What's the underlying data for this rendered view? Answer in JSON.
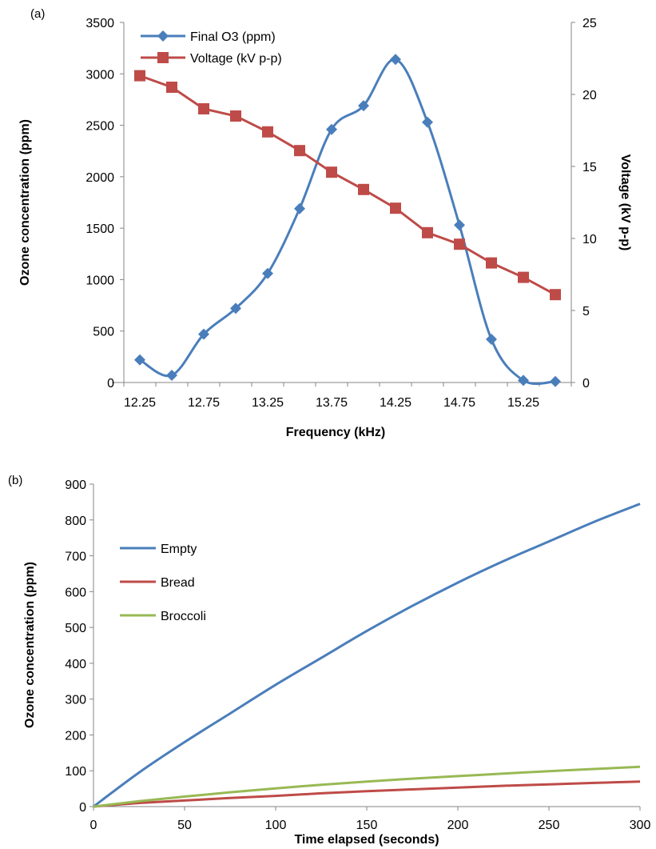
{
  "chart_data": [
    {
      "type": "line",
      "panel_label": "(a)",
      "xlabel": "Frequency (kHz)",
      "ylabel": "Ozone concentration (ppm)",
      "y2label": "Voltage (kV p-p)",
      "x_tick_labels": [
        "12.25",
        "12.75",
        "13.25",
        "13.75",
        "14.25",
        "14.75",
        "15.25"
      ],
      "x_categories": [
        12.25,
        12.5,
        12.75,
        13.0,
        13.25,
        13.5,
        13.75,
        14.0,
        14.25,
        14.5,
        14.75,
        15.0,
        15.25,
        15.5
      ],
      "ylim": [
        0,
        3500
      ],
      "y_ticks": [
        0,
        500,
        1000,
        1500,
        2000,
        2500,
        3000,
        3500
      ],
      "y2lim": [
        0,
        25
      ],
      "y2_ticks": [
        0,
        5,
        10,
        15,
        20,
        25
      ],
      "legend_position": "top-left",
      "series": [
        {
          "name": "Final O3 (ppm)",
          "axis": "left",
          "marker": "diamond",
          "smooth": true,
          "color": "#4a7ebb",
          "values": [
            220,
            70,
            470,
            720,
            1060,
            1690,
            2460,
            2690,
            3140,
            2530,
            1530,
            420,
            20,
            10
          ]
        },
        {
          "name": "Voltage (kV p-p)",
          "axis": "right",
          "marker": "square",
          "smooth": false,
          "color": "#be4b48",
          "values": [
            21.3,
            20.5,
            19.0,
            18.5,
            17.4,
            16.1,
            14.6,
            13.4,
            12.1,
            10.4,
            9.6,
            8.3,
            7.3,
            6.1
          ]
        }
      ]
    },
    {
      "type": "line",
      "panel_label": "(b)",
      "xlabel": "Time elapsed (seconds)",
      "ylabel": "Ozone concentration (ppm)",
      "xlim": [
        0,
        300
      ],
      "x_ticks": [
        0,
        50,
        100,
        150,
        200,
        250,
        300
      ],
      "ylim": [
        0,
        900
      ],
      "y_ticks": [
        0,
        100,
        200,
        300,
        400,
        500,
        600,
        700,
        800,
        900
      ],
      "legend_position": "top-left",
      "series": [
        {
          "name": "Empty",
          "color": "#4a7ebb",
          "x": [
            0,
            25,
            50,
            75,
            100,
            125,
            150,
            175,
            200,
            225,
            250,
            275,
            300
          ],
          "y": [
            0,
            95,
            180,
            260,
            340,
            415,
            490,
            560,
            625,
            685,
            740,
            795,
            845
          ]
        },
        {
          "name": "Bread",
          "color": "#be4b48",
          "x": [
            0,
            25,
            50,
            75,
            100,
            125,
            150,
            175,
            200,
            225,
            250,
            275,
            300
          ],
          "y": [
            0,
            10,
            17,
            24,
            30,
            37,
            43,
            48,
            53,
            58,
            62,
            66,
            70
          ]
        },
        {
          "name": "Broccoli",
          "color": "#98b954",
          "x": [
            0,
            25,
            50,
            75,
            100,
            125,
            150,
            175,
            200,
            225,
            250,
            275,
            300
          ],
          "y": [
            0,
            15,
            28,
            40,
            51,
            61,
            70,
            78,
            85,
            92,
            99,
            105,
            111
          ]
        }
      ]
    }
  ]
}
